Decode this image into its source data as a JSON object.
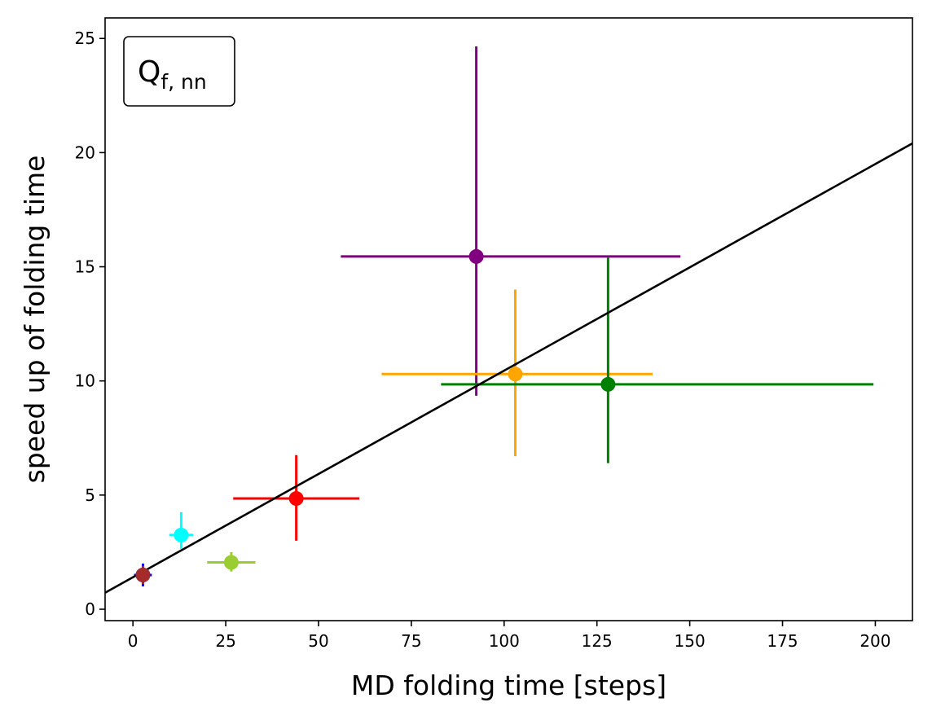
{
  "chart_data": {
    "type": "scatter",
    "xlabel": "MD folding time [steps]",
    "ylabel": "speed up of folding time",
    "xlim": [
      -7.5,
      210
    ],
    "ylim": [
      -0.5,
      25.9
    ],
    "xticks": [
      0,
      25,
      50,
      75,
      100,
      125,
      150,
      175,
      200
    ],
    "yticks": [
      0,
      5,
      10,
      15,
      20,
      25
    ],
    "grid": false,
    "annotation": {
      "main": "Q",
      "subscript": "f, nn",
      "position": "top-left"
    },
    "points": [
      {
        "x": 2.7,
        "y": 1.5,
        "xerr": [
          2.4,
          2.4
        ],
        "yerr": [
          0.5,
          0.5
        ],
        "color": "#0000ff"
      },
      {
        "x": 2.7,
        "y": 1.5,
        "xerr": [
          0.8,
          0.8
        ],
        "yerr": [
          0.4,
          0.4
        ],
        "color": "#a52a2a"
      },
      {
        "x": 13,
        "y": 3.25,
        "xerr": [
          3.2,
          3.2
        ],
        "yerr": [
          0.6,
          1.0
        ],
        "color": "#00ffff"
      },
      {
        "x": 26.5,
        "y": 2.05,
        "xerr": [
          6.5,
          6.5
        ],
        "yerr": [
          0.4,
          0.45
        ],
        "color": "#9acd32"
      },
      {
        "x": 44,
        "y": 4.85,
        "xerr": [
          17,
          17
        ],
        "yerr": [
          1.85,
          1.9
        ],
        "color": "#ff0000"
      },
      {
        "x": 92.5,
        "y": 15.45,
        "xerr": [
          36.5,
          55
        ],
        "yerr": [
          6.1,
          9.2
        ],
        "color": "#800080"
      },
      {
        "x": 103,
        "y": 10.3,
        "xerr": [
          36,
          37
        ],
        "yerr": [
          3.6,
          3.7
        ],
        "color": "#ffa500"
      },
      {
        "x": 128,
        "y": 9.85,
        "xerr": [
          45,
          71.5
        ],
        "yerr": [
          3.45,
          5.55
        ],
        "color": "#008000"
      }
    ],
    "fit_line": {
      "slope": 0.0905,
      "intercept": 1.4,
      "color": "#000000"
    }
  }
}
